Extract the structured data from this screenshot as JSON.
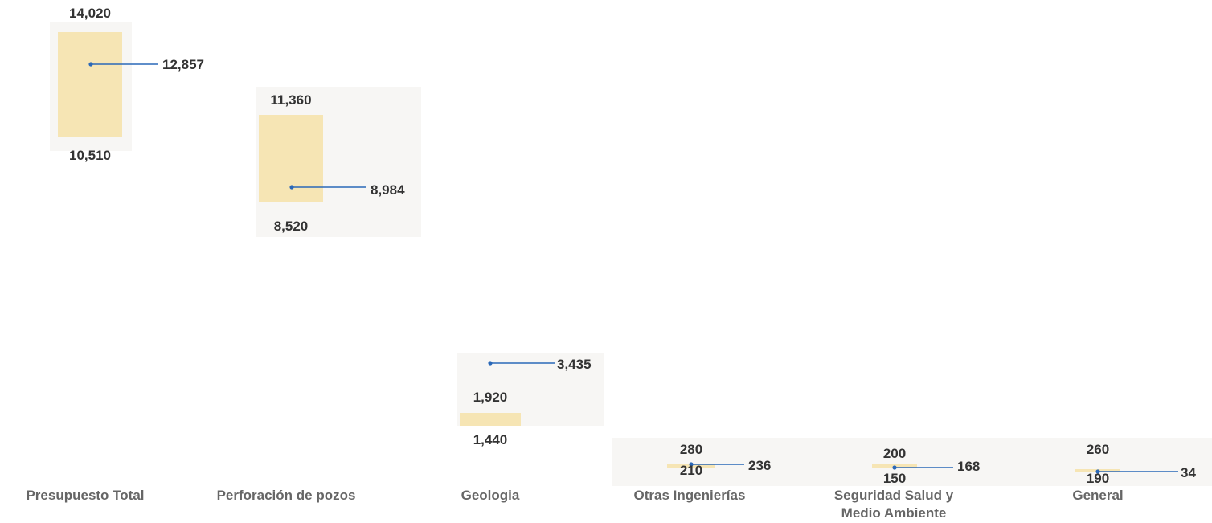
{
  "chart_data": {
    "type": "range-bar",
    "title": "",
    "xlabel": "",
    "ylabel": "",
    "grid": false,
    "legend": "none",
    "colors": {
      "range_bar": "#f6e5b4",
      "reference_marker": "#2a68b8",
      "background_panel": "#f7f6f4",
      "value_text": "#333333",
      "category_text": "#666666"
    },
    "categories": [
      {
        "name": "Presupuesto Total",
        "lines": [
          "Presupuesto Total"
        ],
        "low": 10510,
        "high": 14020,
        "low_label": "10,510",
        "high_label": "14,020",
        "marker": 12857,
        "marker_label": "12,857"
      },
      {
        "name": "Perforación de pozos",
        "lines": [
          "Perforación de pozos"
        ],
        "low": 8520,
        "high": 11360,
        "low_label": "8,520",
        "high_label": "11,360",
        "marker": 8984,
        "marker_label": "8,984"
      },
      {
        "name": "Geologia",
        "lines": [
          "Geologia"
        ],
        "low": 1440,
        "high": 1920,
        "low_label": "1,440",
        "high_label": "1,920",
        "marker": 3435,
        "marker_label": "3,435"
      },
      {
        "name": "Otras Ingenierías",
        "lines": [
          "Otras Ingenierías"
        ],
        "low": 210,
        "high": 280,
        "low_label": "210",
        "high_label": "280",
        "marker": 236,
        "marker_label": "236"
      },
      {
        "name": "Seguridad Salud y Medio Ambiente",
        "lines": [
          "Seguridad Salud y",
          "Medio Ambiente"
        ],
        "low": 150,
        "high": 200,
        "low_label": "150",
        "high_label": "200",
        "marker": 168,
        "marker_label": "168"
      },
      {
        "name": "General",
        "lines": [
          "General"
        ],
        "low": 190,
        "high": 260,
        "low_label": "190",
        "high_label": "260",
        "marker": 34,
        "marker_label": "34"
      }
    ]
  }
}
